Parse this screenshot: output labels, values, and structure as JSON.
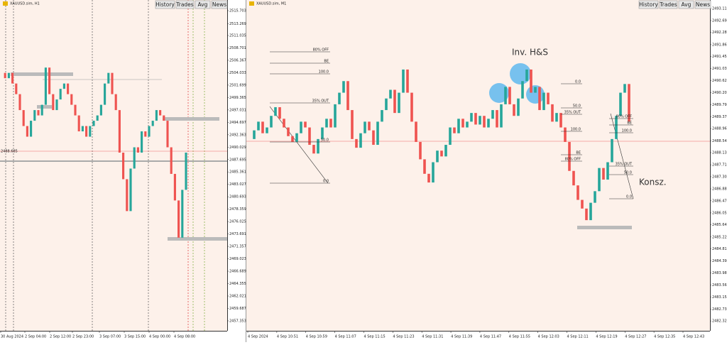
{
  "toolbar": {
    "buttons": [
      "History",
      "Trades",
      "Avg",
      "News"
    ]
  },
  "charts": [
    {
      "title": "XAUUSD.sim, H1",
      "ylim": [
        2455.48,
        2517.71
      ],
      "yticks": [
        2515.703,
        2513.269,
        2511.035,
        2508.701,
        2506.367,
        2504.033,
        2501.699,
        2499.365,
        2497.031,
        2494.697,
        2492.363,
        2490.029,
        2487.695,
        2485.361,
        2483.027,
        2480.693,
        2478.359,
        2476.025,
        2473.691,
        2471.357,
        2469.023,
        2466.689,
        2464.355,
        2462.021,
        2459.687,
        2457.353
      ],
      "xlabels": [
        "30 Aug 2024",
        "2 Sep 04:00",
        "2 Sep 12:00",
        "2 Sep 23:00",
        "3 Sep 07:00",
        "3 Sep 15:00",
        "4 Sep 00:00",
        "4 Sep 08:00"
      ],
      "price_label": "2488.685",
      "closes": [
        2504,
        2503,
        2504,
        2502,
        2500,
        2497,
        2494,
        2492,
        2495,
        2497,
        2496,
        2498,
        2505,
        2500,
        2497,
        2499,
        2501,
        2502,
        2500,
        2498,
        2496,
        2493,
        2494,
        2492,
        2494,
        2495,
        2496,
        2498,
        2502,
        2504,
        2500,
        2497,
        2489,
        2484,
        2478,
        2486,
        2490,
        2489,
        2493,
        2492,
        2494,
        2495,
        2497,
        2496,
        2495,
        2490,
        2485,
        2480,
        2473,
        2482,
        2489
      ]
    },
    {
      "title": "XAUUSD.sim, M1",
      "ylim": [
        2481.98,
        2493.4
      ],
      "yticks": [
        2493.11,
        2492.69,
        2492.28,
        2491.86,
        2491.45,
        2491.03,
        2490.62,
        {
          "value": 2490.2,
          "label": "2490.20"
        },
        2489.79,
        2489.37,
        2488.96,
        2488.54,
        2488.13,
        2487.71,
        {
          "value": 2487.3,
          "label": "2487.30"
        },
        2486.88,
        2486.47,
        2486.05,
        2485.64,
        2485.22,
        2484.81,
        2484.39,
        2483.98,
        2483.56,
        2483.15,
        2482.73,
        2482.32
      ],
      "xlabels": [
        "4 Sep 2024",
        "4 Sep 10:51",
        "4 Sep 10:59",
        "4 Sep 11:07",
        "4 Sep 11:15",
        "4 Sep 11:23",
        "4 Sep 11:31",
        "4 Sep 11:39",
        "4 Sep 11:47",
        "4 Sep 11:55",
        "4 Sep 12:03",
        "4 Sep 12:11",
        "4 Sep 12:19",
        "4 Sep 12:27",
        "4 Sep 12:35",
        "4 Sep 12:43"
      ],
      "closes": [
        2488.6,
        2488.9,
        2489.2,
        2488.8,
        2489.0,
        2489.4,
        2489.7,
        2489.3,
        2489.0,
        2488.7,
        2488.5,
        2488.8,
        2489.2,
        2489.0,
        2488.4,
        2488.1,
        2488.6,
        2489.0,
        2489.3,
        2489.0,
        2489.8,
        2490.2,
        2490.6,
        2489.6,
        2488.6,
        2488.3,
        2488.8,
        2489.2,
        2488.9,
        2488.4,
        2489.2,
        2489.6,
        2490.0,
        2490.3,
        2489.5,
        2490.2,
        2491.0,
        2490.2,
        2489.2,
        2488.5,
        2487.9,
        2487.4,
        2487.1,
        2487.8,
        2488.2,
        2488.0,
        2488.4,
        2489.0,
        2488.8,
        2489.3,
        2489.0,
        2489.2,
        2489.5,
        2489.1,
        2489.4,
        2489.0,
        2489.3,
        2489.6,
        2489.0,
        2489.8,
        2490.4,
        2489.8,
        2489.4,
        2490.0,
        2490.6,
        2491.0,
        2490.2,
        2490.4,
        2489.6,
        2490.2,
        2489.8,
        2489.2,
        2489.5,
        2489.0,
        2488.5,
        2487.5,
        2487.0,
        2486.5,
        2486.2,
        2485.8,
        2486.4,
        2486.8,
        2487.6,
        2487.2,
        2487.8,
        2488.6,
        2489.4,
        2490.2,
        2490.5,
        2489.2
      ],
      "annotations": {
        "pattern": "Inv. H&S",
        "range": "Konsz.",
        "fib_a": [
          "80% OFF",
          "BE",
          "100.0",
          "35% OUT",
          "50.0",
          "0.0"
        ],
        "fib_b": [
          "0.0",
          "50.0",
          "35% OUT",
          "100.0",
          "BE",
          "80% OFF"
        ],
        "fib_c": [
          "80% OFF",
          "BE",
          "100.0",
          "35% OUT",
          "50.0",
          "0.0"
        ]
      }
    }
  ]
}
